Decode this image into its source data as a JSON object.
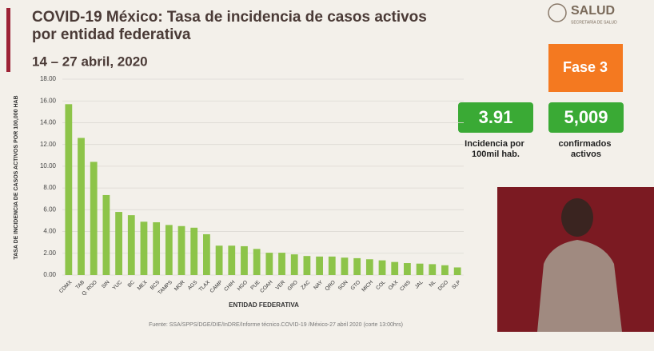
{
  "slide": {
    "logo": "SALUD",
    "logo_sub": "SECRETARÍA DE SALUD",
    "phase": "Fase 3",
    "stat_1": {
      "value": "3.91",
      "label": "Incidencia por 100mil hab."
    },
    "stat_2": {
      "value": "5,009",
      "label": "confirmados activos"
    },
    "date": "14 – 27 abril, 2020",
    "source": "Fuente: SSA/SPPS/DGE/DIE/InDRE/Informe técnico.COVID-19 /México-27 abril 2020 (corte 13:00hrs)"
  },
  "chart_data": {
    "type": "bar",
    "title": "COVID-19 México: Tasa de incidencia de casos activos por entidad federativa",
    "x_label": "ENTIDAD FEDERATIVA",
    "y_label": "TASA DE INCIDENCIA DE CASOS ACTIVOS POR 100,000 HAB",
    "categories": [
      "CDMX",
      "TAB",
      "Q. ROO",
      "SIN",
      "YUC",
      "BC",
      "MEX",
      "BCS",
      "TAMPS",
      "MOR",
      "AGS",
      "TLAX",
      "CAMP",
      "CHIH",
      "HGO",
      "PUE",
      "COAH",
      "VER",
      "GRO",
      "ZAC",
      "NAY",
      "QRO",
      "SON",
      "GTO",
      "MICH",
      "COL",
      "OAX",
      "CHIS",
      "JAL",
      "NL",
      "DGO",
      "SLP"
    ],
    "values": [
      15.7,
      12.6,
      10.4,
      7.35,
      5.8,
      5.5,
      4.9,
      4.85,
      4.6,
      4.5,
      4.35,
      3.75,
      2.7,
      2.7,
      2.65,
      2.4,
      2.05,
      2.05,
      1.9,
      1.75,
      1.7,
      1.7,
      1.6,
      1.55,
      1.45,
      1.35,
      1.2,
      1.1,
      1.05,
      1.0,
      0.9,
      0.7
    ],
    "color": "#8dc449",
    "ylim": [
      0,
      18
    ],
    "yticks": [
      {
        "value": 0,
        "label": "0.00"
      },
      {
        "value": 2,
        "label": "2.00"
      },
      {
        "value": 4,
        "label": "4.00"
      },
      {
        "value": 6,
        "label": "6.00"
      },
      {
        "value": 8,
        "label": "8.00"
      },
      {
        "value": 10,
        "label": "10.00"
      },
      {
        "value": 12,
        "label": "12.00"
      },
      {
        "value": 14,
        "label": "14.00"
      },
      {
        "value": 16,
        "label": "16.00"
      },
      {
        "value": 18,
        "label": "18.00"
      }
    ],
    "grid": true
  }
}
